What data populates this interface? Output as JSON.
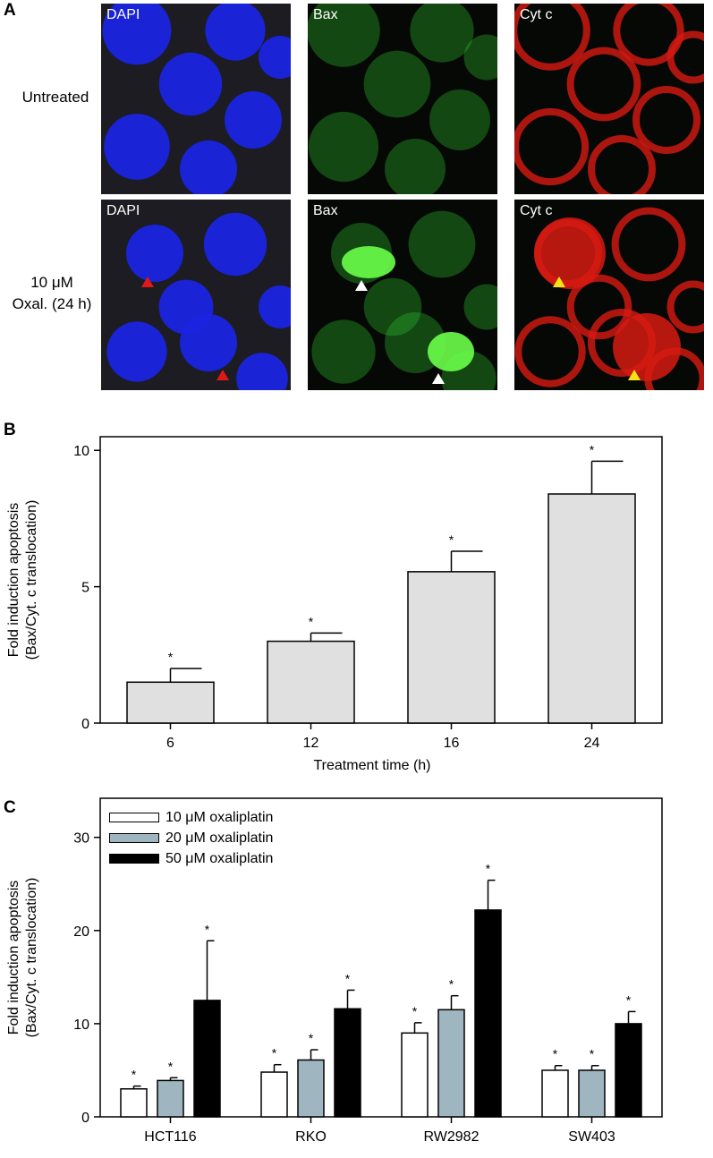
{
  "panels": {
    "a": {
      "letter": "A"
    },
    "b": {
      "letter": "B"
    },
    "c": {
      "letter": "C"
    }
  },
  "micrographs": {
    "stains": [
      "DAPI",
      "Bax",
      "Cyt c"
    ],
    "rows": [
      {
        "label": "Untreated"
      },
      {
        "label_line1": "10 μM",
        "label_line2": "Oxal. (24 h)"
      }
    ],
    "colors": {
      "dapi": "#1a24e0",
      "bax": "#2fc12f",
      "cytc": "#d61a12"
    },
    "arrowhead_colors": {
      "dapi": "#e01818",
      "bax": "#ffffff",
      "cytc": "#f2e414"
    }
  },
  "chart_data": [
    {
      "type": "bar",
      "panel": "B",
      "categories": [
        "6",
        "12",
        "16",
        "24"
      ],
      "values": [
        1.5,
        3.0,
        5.55,
        8.4
      ],
      "errors": [
        0.5,
        0.3,
        0.75,
        1.2
      ],
      "significance": [
        "*",
        "*",
        "*",
        "*"
      ],
      "xlabel": "Treatment time (h)",
      "ylabel_line1": "Fold induction apoptosis",
      "ylabel_line2": "(Bax/Cyt. c translocation)",
      "ylim": [
        0,
        10.5
      ],
      "yticks": [
        0,
        5,
        10
      ],
      "bar_color": "#e0e0e0"
    },
    {
      "type": "bar",
      "panel": "C",
      "categories": [
        "HCT116",
        "RKO",
        "RW2982",
        "SW403"
      ],
      "series": [
        {
          "name": "10 μM oxaliplatin",
          "color": "#ffffff",
          "values": [
            3.0,
            4.8,
            9.0,
            5.0
          ],
          "errors": [
            0.3,
            0.8,
            1.1,
            0.5
          ]
        },
        {
          "name": "20 μM oxaliplatin",
          "color": "#9fb5c0",
          "values": [
            3.9,
            6.1,
            11.5,
            5.0
          ],
          "errors": [
            0.3,
            1.1,
            1.5,
            0.5
          ]
        },
        {
          "name": "50 μM oxaliplatin",
          "color": "#000000",
          "values": [
            12.5,
            11.6,
            22.2,
            10.0
          ],
          "errors": [
            6.4,
            2.0,
            3.2,
            1.3
          ]
        }
      ],
      "significance": "*",
      "xlabel": "",
      "ylabel_line1": "Fold induction apoptosis",
      "ylabel_line2": "(Bax/Cyt. c translocation)",
      "ylim": [
        0,
        34.2
      ],
      "yticks": [
        0,
        10,
        20,
        30
      ],
      "legend_position": "top-left"
    }
  ]
}
